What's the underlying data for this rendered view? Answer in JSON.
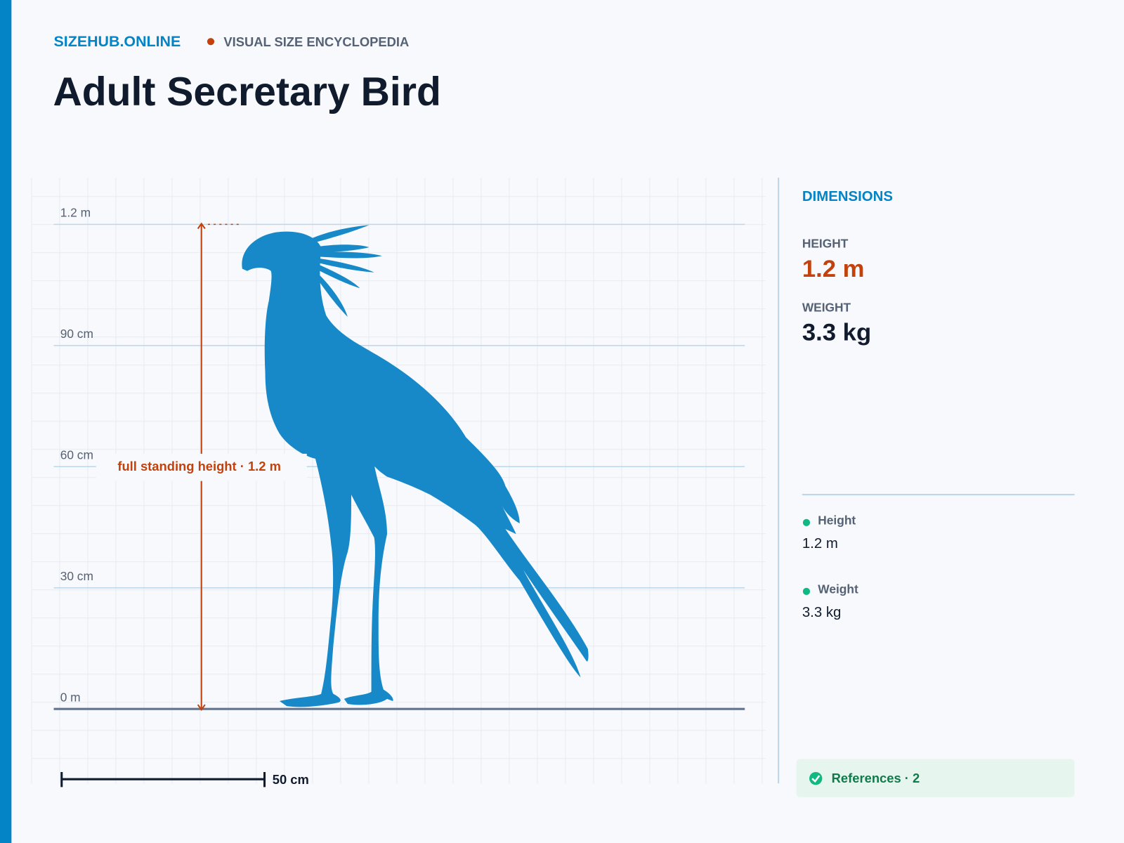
{
  "header": {
    "site": "SIZEHUB.ONLINE",
    "tagline": "VISUAL SIZE ENCYCLOPEDIA",
    "title": "Adult Secretary Bird"
  },
  "scale": {
    "ticks": [
      "1.2 m",
      "90 cm",
      "60 cm",
      "30 cm",
      "0 m"
    ],
    "annotation": "full standing height · 1.2 m",
    "scale_bar": "50 cm"
  },
  "panel": {
    "heading": "DIMENSIONS",
    "stats": [
      {
        "label": "HEIGHT",
        "value": "1.2 m"
      },
      {
        "label": "WEIGHT",
        "value": "3.3 kg"
      }
    ],
    "facts": [
      {
        "label": "Height",
        "value": "1.2 m"
      },
      {
        "label": "Weight",
        "value": "3.3 kg"
      }
    ],
    "references": "References · 2"
  }
}
